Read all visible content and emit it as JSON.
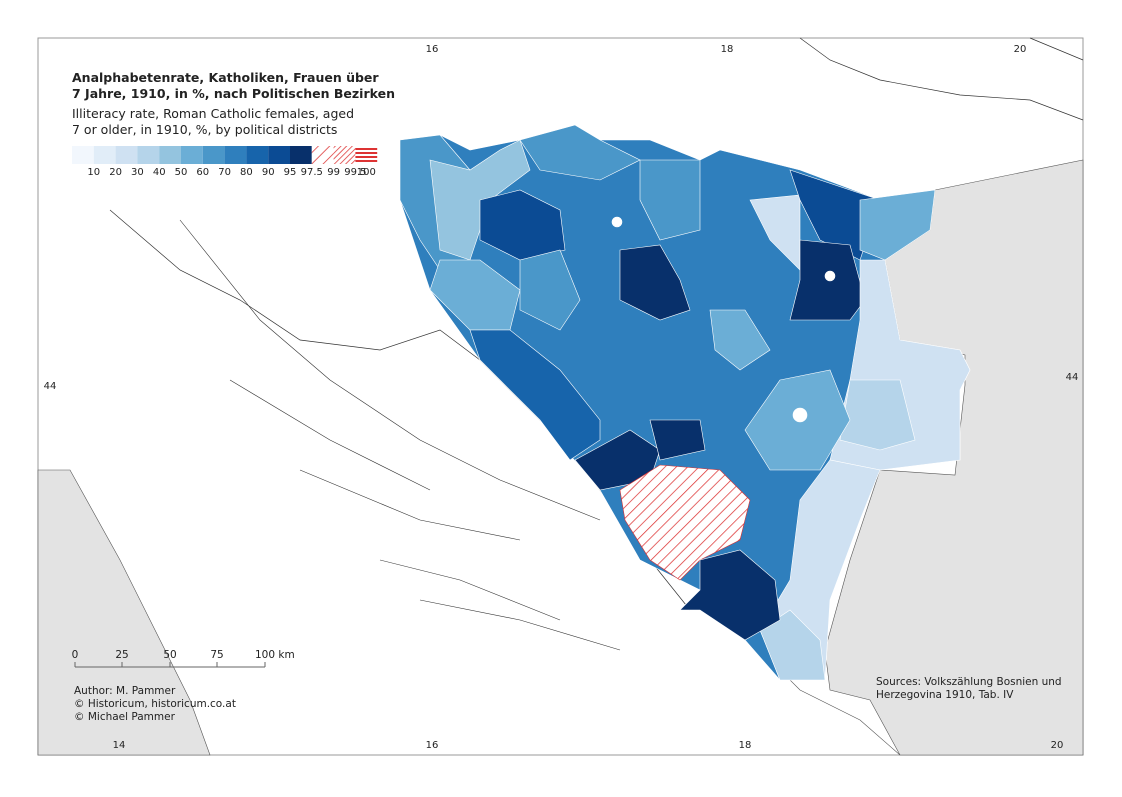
{
  "header": {
    "title": [
      "Analphabetenrate, Katholiken, Frauen über",
      "7 Jahre, 1910, in %, nach Politischen Bezirken"
    ],
    "subtitle": [
      "Illiteracy rate, Roman Catholic females, aged",
      "7 or older, in 1910, %, by political districts"
    ]
  },
  "legend": {
    "labels": [
      10,
      20,
      30,
      40,
      50,
      60,
      70,
      80,
      90,
      95,
      97.5,
      99,
      99.5,
      100
    ],
    "colors": [
      "#f2f7fd",
      "#e1edf8",
      "#cfe1f2",
      "#b5d4ea",
      "#94c4df",
      "#6baed6",
      "#4a97c9",
      "#2f7fbd",
      "#1764ab",
      "#0b4b94",
      "#08306b",
      "hatch-sparse",
      "hatch-mid",
      "hatch-dense"
    ]
  },
  "graticule": {
    "top": [
      "16",
      "18",
      "20"
    ],
    "bottom": [
      "14",
      "16",
      "18",
      "20"
    ],
    "left": "44",
    "right": "44"
  },
  "scale": {
    "labels": [
      "0",
      "25",
      "50",
      "75",
      "100 km"
    ]
  },
  "credits": [
    "Author: M. Pammer",
    "© Historicum, historicum.co.at",
    "© Michael Pammer"
  ],
  "sources": [
    "Sources: Volkszählung Bosnien und",
    "Herzegovina 1910, Tab. IV"
  ]
}
